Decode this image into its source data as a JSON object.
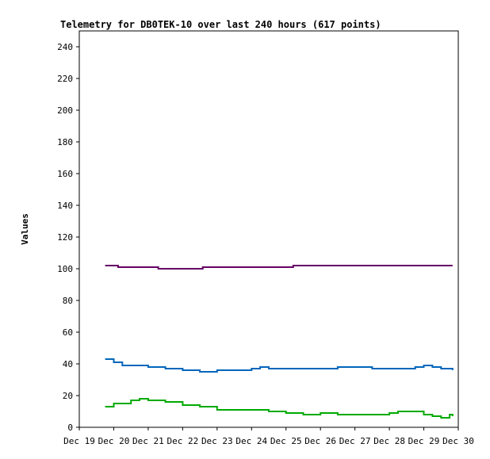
{
  "chart_data": {
    "type": "line",
    "title": "Telemetry for DB0TEK-10 over last 240 hours (617 points)",
    "xlabel": "",
    "ylabel": "Values",
    "ylim": [
      0,
      250
    ],
    "yticks": [
      0,
      20,
      40,
      60,
      80,
      100,
      120,
      140,
      160,
      180,
      200,
      220,
      240
    ],
    "xlim": [
      "Dec 19",
      "Dec 30"
    ],
    "x_tick_labels": [
      "Dec 19",
      "Dec 20",
      "Dec 21",
      "Dec 22",
      "Dec 23",
      "Dec 24",
      "Dec 25",
      "Dec 26",
      "Dec 27",
      "Dec 28",
      "Dec 29",
      "Dec 30"
    ],
    "grid": false,
    "legend": "none",
    "series": [
      {
        "color": "#660066",
        "x": [
          "Dec 19 18:00",
          "Dec 20 03:00",
          "Dec 21 06:00",
          "Dec 21 07:00",
          "Dec 22 13:00",
          "Dec 22 14:00",
          "Dec 25 04:00",
          "Dec 25 05:00",
          "Dec 29 20:00"
        ],
        "y": [
          102,
          101,
          101,
          100,
          100,
          101,
          101,
          102,
          102
        ]
      },
      {
        "color": "#0066bb",
        "x": [
          "Dec 19 18:00",
          "Dec 20 00:00",
          "Dec 20 06:00",
          "Dec 20 12:00",
          "Dec 21 00:00",
          "Dec 21 12:00",
          "Dec 22 00:00",
          "Dec 22 06:00",
          "Dec 22 12:00",
          "Dec 23 00:00",
          "Dec 24 00:00",
          "Dec 24 06:00",
          "Dec 24 12:00",
          "Dec 25 00:00",
          "Dec 25 12:00",
          "Dec 26 00:00",
          "Dec 26 12:00",
          "Dec 27 00:00",
          "Dec 27 06:00",
          "Dec 27 12:00",
          "Dec 28 00:00",
          "Dec 28 12:00",
          "Dec 28 18:00",
          "Dec 29 00:00",
          "Dec 29 06:00",
          "Dec 29 12:00",
          "Dec 29 20:00"
        ],
        "y": [
          43,
          41,
          39,
          39,
          38,
          37,
          36,
          36,
          35,
          36,
          37,
          38,
          37,
          37,
          37,
          37,
          38,
          38,
          38,
          37,
          37,
          37,
          38,
          39,
          38,
          37,
          36
        ]
      },
      {
        "color": "#00aa00",
        "x": [
          "Dec 19 18:00",
          "Dec 20 00:00",
          "Dec 20 12:00",
          "Dec 20 18:00",
          "Dec 21 00:00",
          "Dec 21 12:00",
          "Dec 22 00:00",
          "Dec 22 12:00",
          "Dec 23 00:00",
          "Dec 23 12:00",
          "Dec 24 00:00",
          "Dec 24 12:00",
          "Dec 25 00:00",
          "Dec 25 12:00",
          "Dec 26 00:00",
          "Dec 26 12:00",
          "Dec 27 00:00",
          "Dec 27 12:00",
          "Dec 28 00:00",
          "Dec 28 06:00",
          "Dec 28 12:00",
          "Dec 29 00:00",
          "Dec 29 06:00",
          "Dec 29 12:00",
          "Dec 29 18:00",
          "Dec 29 20:00"
        ],
        "y": [
          13,
          15,
          17,
          18,
          17,
          16,
          14,
          13,
          11,
          11,
          11,
          10,
          9,
          8,
          9,
          8,
          8,
          8,
          9,
          10,
          10,
          8,
          7,
          6,
          8,
          7
        ]
      }
    ]
  }
}
